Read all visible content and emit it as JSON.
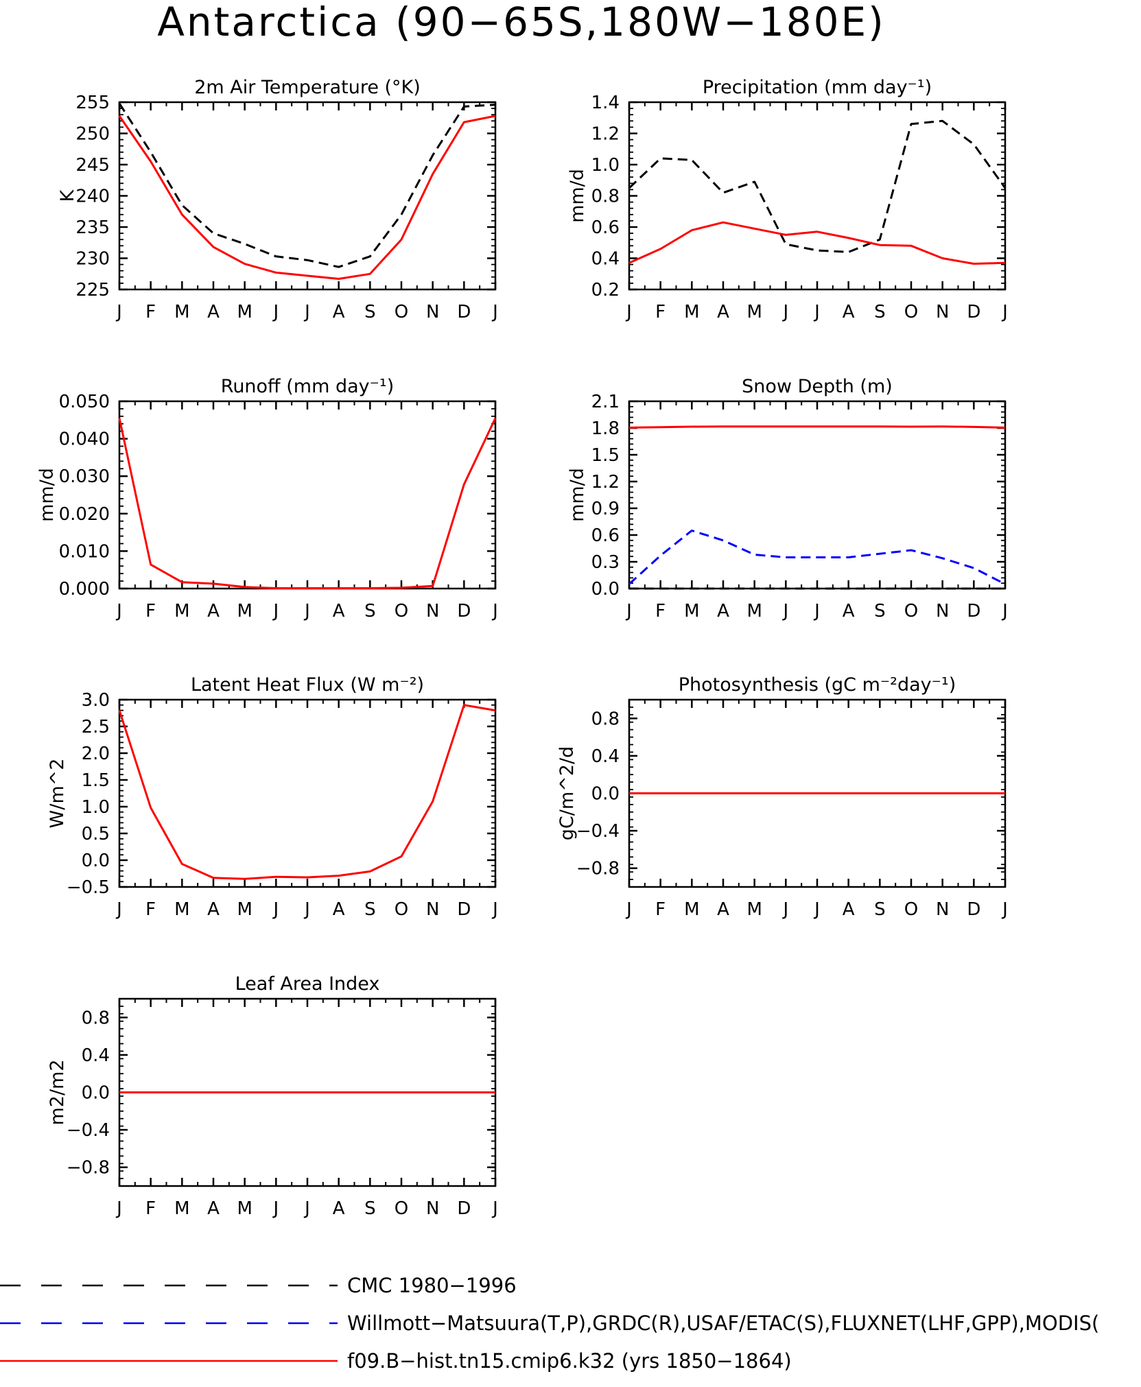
{
  "title": "Antarctica (90−65S,180W−180E)",
  "months": [
    "J",
    "F",
    "M",
    "A",
    "M",
    "J",
    "J",
    "A",
    "S",
    "O",
    "N",
    "D",
    "J"
  ],
  "legend": [
    {
      "label": "CMC 1980−1996",
      "color": "#000000",
      "dash": true
    },
    {
      "label": "Willmott−Matsuura(T,P),GRDC(R),USAF/ETAC(S),FLUXNET(LHF,GPP),MODIS(",
      "color": "#0000ff",
      "dash": true
    },
    {
      "label": "f09.B−hist.tn15.cmip6.k32 (yrs 1850−1864)",
      "color": "#ff0000",
      "dash": false
    }
  ],
  "chart_data": [
    {
      "type": "line",
      "title": "2m Air Temperature (°K)",
      "ylabel": "K",
      "ylim": [
        225,
        255
      ],
      "yticks": [
        "255",
        "250",
        "245",
        "240",
        "235",
        "230",
        "225"
      ],
      "ytick_values": [
        255,
        250,
        245,
        240,
        235,
        230,
        225
      ],
      "x": [
        "J",
        "F",
        "M",
        "A",
        "M",
        "J",
        "J",
        "A",
        "S",
        "O",
        "N",
        "D",
        "J"
      ],
      "series": [
        {
          "name": "CMC 1980−1996",
          "color": "#000000",
          "dash": true,
          "values": [
            254.8,
            247.0,
            238.5,
            234.0,
            232.3,
            230.3,
            229.7,
            228.6,
            230.3,
            237.0,
            246.5,
            254.3,
            254.6
          ]
        },
        {
          "name": "f09.B−hist.tn15.cmip6.k32 (yrs 1850−1864)",
          "color": "#ff0000",
          "dash": false,
          "values": [
            252.8,
            245.5,
            237.0,
            231.8,
            229.1,
            227.7,
            227.2,
            226.7,
            227.5,
            233.0,
            243.5,
            251.8,
            252.8
          ]
        }
      ]
    },
    {
      "type": "line",
      "title": "Precipitation (mm day⁻¹)",
      "ylabel": "mm/d",
      "ylim": [
        0.2,
        1.4
      ],
      "yticks": [
        "1.4",
        "1.2",
        "1.0",
        "0.8",
        "0.6",
        "0.4",
        "0.2"
      ],
      "ytick_values": [
        1.4,
        1.2,
        1.0,
        0.8,
        0.6,
        0.4,
        0.2
      ],
      "x": [
        "J",
        "F",
        "M",
        "A",
        "M",
        "J",
        "J",
        "A",
        "S",
        "O",
        "N",
        "D",
        "J"
      ],
      "series": [
        {
          "name": "CMC 1980−1996",
          "color": "#000000",
          "dash": true,
          "values": [
            0.85,
            1.04,
            1.03,
            0.82,
            0.89,
            0.49,
            0.45,
            0.44,
            0.52,
            1.26,
            1.28,
            1.13,
            0.85
          ]
        },
        {
          "name": "f09.B−hist.tn15.cmip6.k32 (yrs 1850−1864)",
          "color": "#ff0000",
          "dash": false,
          "values": [
            0.37,
            0.46,
            0.58,
            0.63,
            0.59,
            0.55,
            0.57,
            0.53,
            0.485,
            0.48,
            0.4,
            0.365,
            0.37
          ]
        }
      ]
    },
    {
      "type": "line",
      "title": "Runoff (mm day⁻¹)",
      "ylabel": "mm/d",
      "ylim": [
        0.0,
        0.05
      ],
      "yticks": [
        "0.050",
        "0.040",
        "0.030",
        "0.020",
        "0.010",
        "0.000"
      ],
      "ytick_values": [
        0.05,
        0.04,
        0.03,
        0.02,
        0.01,
        0.0
      ],
      "x": [
        "J",
        "F",
        "M",
        "A",
        "M",
        "J",
        "J",
        "A",
        "S",
        "O",
        "N",
        "D",
        "J"
      ],
      "series": [
        {
          "name": "f09.B−hist.tn15.cmip6.k32 (yrs 1850−1864)",
          "color": "#ff0000",
          "dash": false,
          "values": [
            0.0455,
            0.0064,
            0.0017,
            0.0013,
            0.0004,
            0.0001,
            0.0001,
            0.0001,
            0.0001,
            0.0002,
            0.0007,
            0.0278,
            0.0455
          ]
        }
      ]
    },
    {
      "type": "line",
      "title": "Snow Depth (m)",
      "ylabel": "mm/d",
      "ylim": [
        0.0,
        2.1
      ],
      "yticks": [
        "2.1",
        "1.8",
        "1.5",
        "1.2",
        "0.9",
        "0.6",
        "0.3",
        "0.0"
      ],
      "ytick_values": [
        2.1,
        1.8,
        1.5,
        1.2,
        0.9,
        0.6,
        0.3,
        0.0
      ],
      "x": [
        "J",
        "F",
        "M",
        "A",
        "M",
        "J",
        "J",
        "A",
        "S",
        "O",
        "N",
        "D",
        "J"
      ],
      "series": [
        {
          "name": "CMC 1980−1996",
          "color": "#000000",
          "dash": true,
          "values": [
            0.0,
            0.0,
            0.0,
            0.0,
            0.0,
            0.0,
            0.0,
            0.0,
            0.0,
            0.0,
            0.0,
            0.0,
            0.0
          ]
        },
        {
          "name": "Willmott−Matsuura(T,P),GRDC(R),USAF/ETAC(S),FLUXNET(LHF,GPP),MODIS(",
          "color": "#0000ff",
          "dash": true,
          "values": [
            0.05,
            0.37,
            0.65,
            0.54,
            0.38,
            0.35,
            0.35,
            0.35,
            0.39,
            0.43,
            0.34,
            0.23,
            0.05
          ]
        },
        {
          "name": "f09.B−hist.tn15.cmip6.k32 (yrs 1850−1864)",
          "color": "#ff0000",
          "dash": false,
          "values": [
            1.805,
            1.81,
            1.815,
            1.818,
            1.818,
            1.818,
            1.818,
            1.818,
            1.818,
            1.815,
            1.818,
            1.812,
            1.805
          ]
        }
      ]
    },
    {
      "type": "line",
      "title": "Latent Heat Flux (W m⁻²)",
      "ylabel": "W/m^2",
      "ylim": [
        -0.5,
        3.0
      ],
      "yticks": [
        "3.0",
        "2.5",
        "2.0",
        "1.5",
        "1.0",
        "0.5",
        "0.0",
        "−0.5"
      ],
      "ytick_values": [
        3.0,
        2.5,
        2.0,
        1.5,
        1.0,
        0.5,
        0.0,
        -0.5
      ],
      "x": [
        "J",
        "F",
        "M",
        "A",
        "M",
        "J",
        "J",
        "A",
        "S",
        "O",
        "N",
        "D",
        "J"
      ],
      "series": [
        {
          "name": "f09.B−hist.tn15.cmip6.k32 (yrs 1850−1864)",
          "color": "#ff0000",
          "dash": false,
          "values": [
            2.8,
            0.98,
            -0.07,
            -0.33,
            -0.35,
            -0.31,
            -0.32,
            -0.29,
            -0.21,
            0.07,
            1.1,
            2.9,
            2.8
          ]
        }
      ]
    },
    {
      "type": "line",
      "title": "Photosynthesis (gC m⁻²day⁻¹)",
      "ylabel": "gC/m^2/d",
      "ylim": [
        -1.0,
        1.0
      ],
      "yticks": [
        "0.8",
        "0.4",
        "0.0",
        "−0.4",
        "−0.8"
      ],
      "ytick_values": [
        0.8,
        0.4,
        0.0,
        -0.4,
        -0.8
      ],
      "x": [
        "J",
        "F",
        "M",
        "A",
        "M",
        "J",
        "J",
        "A",
        "S",
        "O",
        "N",
        "D",
        "J"
      ],
      "series": [
        {
          "name": "f09.B−hist.tn15.cmip6.k32 (yrs 1850−1864)",
          "color": "#ff0000",
          "dash": false,
          "values": [
            0,
            0,
            0,
            0,
            0,
            0,
            0,
            0,
            0,
            0,
            0,
            0,
            0
          ]
        }
      ]
    },
    {
      "type": "line",
      "title": "Leaf Area Index",
      "ylabel": "m2/m2",
      "ylim": [
        -1.0,
        1.0
      ],
      "yticks": [
        "0.8",
        "0.4",
        "0.0",
        "−0.4",
        "−0.8"
      ],
      "ytick_values": [
        0.8,
        0.4,
        0.0,
        -0.4,
        -0.8
      ],
      "x": [
        "J",
        "F",
        "M",
        "A",
        "M",
        "J",
        "J",
        "A",
        "S",
        "O",
        "N",
        "D",
        "J"
      ],
      "series": [
        {
          "name": "f09.B−hist.tn15.cmip6.k32 (yrs 1850−1864)",
          "color": "#ff0000",
          "dash": false,
          "values": [
            0,
            0,
            0,
            0,
            0,
            0,
            0,
            0,
            0,
            0,
            0,
            0,
            0
          ]
        }
      ]
    }
  ]
}
